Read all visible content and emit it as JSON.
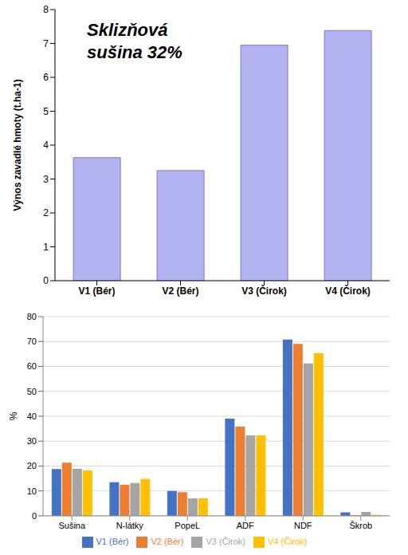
{
  "chart_data": [
    {
      "type": "bar",
      "ylabel": "Výnos zavadlé hmoty (t.ha-1)",
      "annotation": "Sklizňová sušina 32%",
      "categories": [
        "V1 (Bér)",
        "V2 (Bér)",
        "V3 (Čirok)",
        "V4 (Čirok)"
      ],
      "values": [
        3.63,
        3.25,
        6.95,
        7.38
      ],
      "color": "#b3b3f2",
      "ylim": [
        0,
        8
      ],
      "yticks": [
        0,
        1,
        2,
        3,
        4,
        5,
        6,
        7,
        8
      ],
      "grid": false
    },
    {
      "type": "bar",
      "ylabel": "%",
      "categories": [
        "Sušina",
        "N-látky",
        "PopeL",
        "ADF",
        "NDF",
        "Škrob"
      ],
      "series": [
        {
          "name": "V1 (Bér)",
          "color": "#4472c4",
          "values": [
            18.8,
            13.5,
            10,
            39,
            70.8,
            1.4
          ]
        },
        {
          "name": "V2 (Bér)",
          "color": "#ed7d31",
          "values": [
            21.3,
            12.5,
            9.5,
            35.8,
            69,
            0.3
          ]
        },
        {
          "name": "V3 (Čirok)",
          "color": "#a5a5a5",
          "values": [
            18.9,
            13.2,
            7,
            32.3,
            61.2,
            1.6
          ]
        },
        {
          "name": "V4 (Čirok)",
          "color": "#ffc000",
          "values": [
            18.2,
            14.8,
            7,
            32.3,
            65.3,
            0.4
          ]
        }
      ],
      "ylim": [
        0,
        80
      ],
      "yticks": [
        0,
        10,
        20,
        30,
        40,
        50,
        60,
        70,
        80
      ],
      "grid": true,
      "legend": "bottom"
    }
  ]
}
